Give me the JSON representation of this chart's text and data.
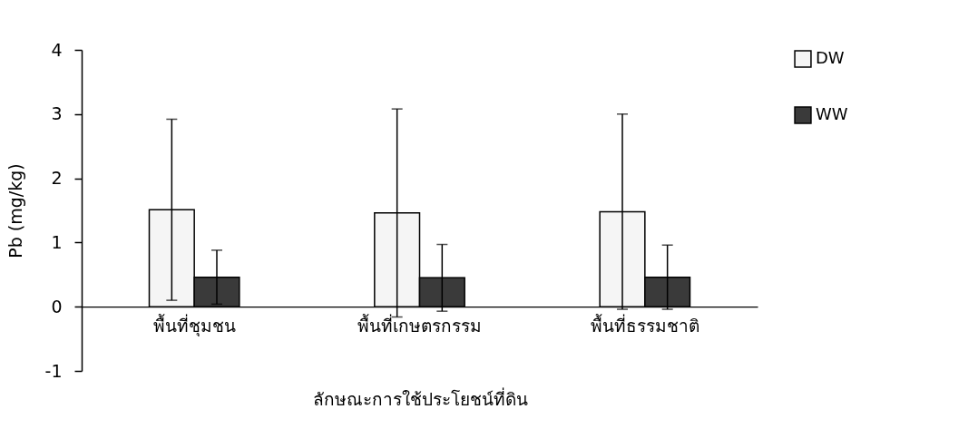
{
  "chart_data": {
    "type": "bar",
    "xlabel": "ลักษณะการใช้ประโยชน์ที่ดิน",
    "ylabel": "Pb (mg/kg)",
    "categories": [
      "พื้นที่ชุมชน",
      "พื้นที่เกษตรกรรม",
      "พื้นที่ธรรมชาติ"
    ],
    "series": [
      {
        "name": "DW",
        "color": "#f5f5f5",
        "values": [
          1.51,
          1.46,
          1.48
        ],
        "errors": [
          1.41,
          1.62,
          1.52
        ]
      },
      {
        "name": "WW",
        "color": "#3a3a3a",
        "values": [
          0.46,
          0.45,
          0.46
        ],
        "errors": [
          0.42,
          0.52,
          0.5
        ]
      }
    ],
    "ylim": [
      -1,
      4
    ],
    "yticks": [
      -1,
      0,
      1,
      2,
      3,
      4
    ],
    "grid": false,
    "legend": "right"
  }
}
